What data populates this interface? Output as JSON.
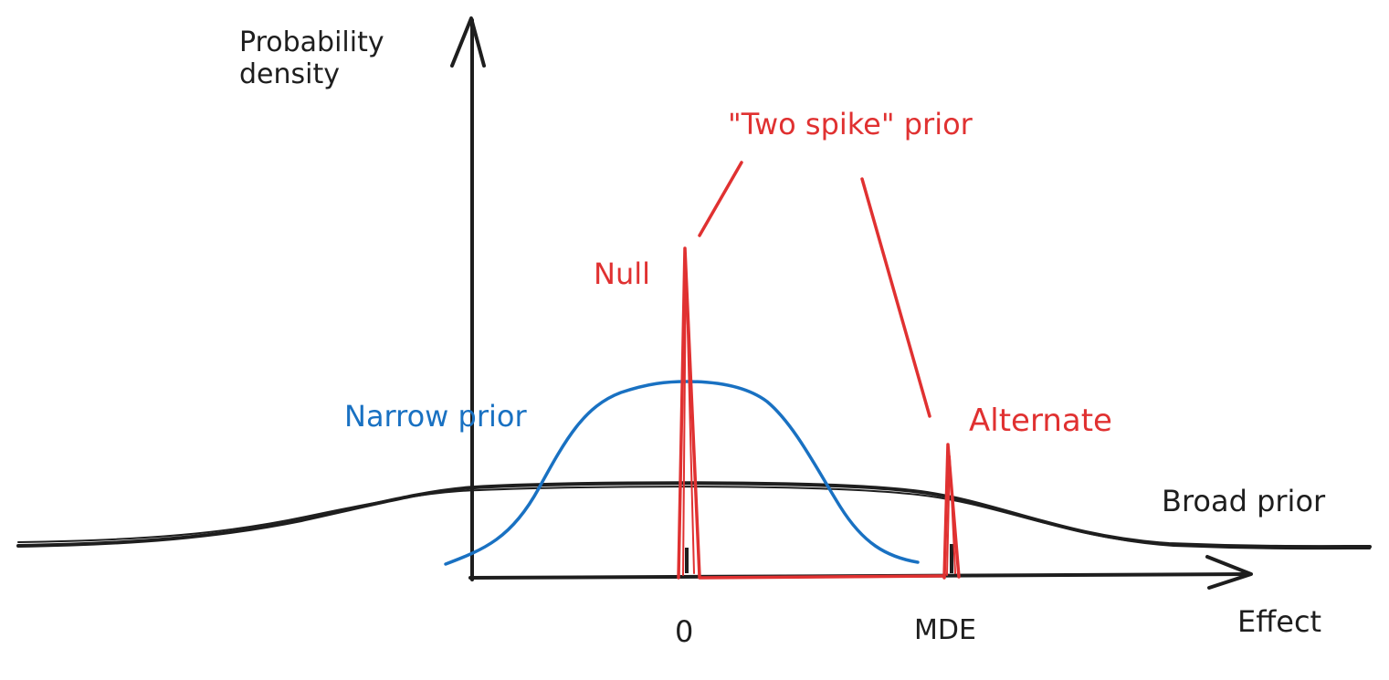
{
  "y_axis_label": [
    "Probability",
    "density"
  ],
  "x_axis_label": "Effect",
  "ticks": {
    "zero": "0",
    "mde": "MDE"
  },
  "two_spike_label": "\"Two spike\" prior",
  "null_label": "Null",
  "alternate_label": "Alternate",
  "narrow_label": "Narrow prior",
  "broad_label": "Broad prior",
  "colors": {
    "ink": "#1e1e1e",
    "red": "#e03131",
    "blue": "#1971c2"
  }
}
